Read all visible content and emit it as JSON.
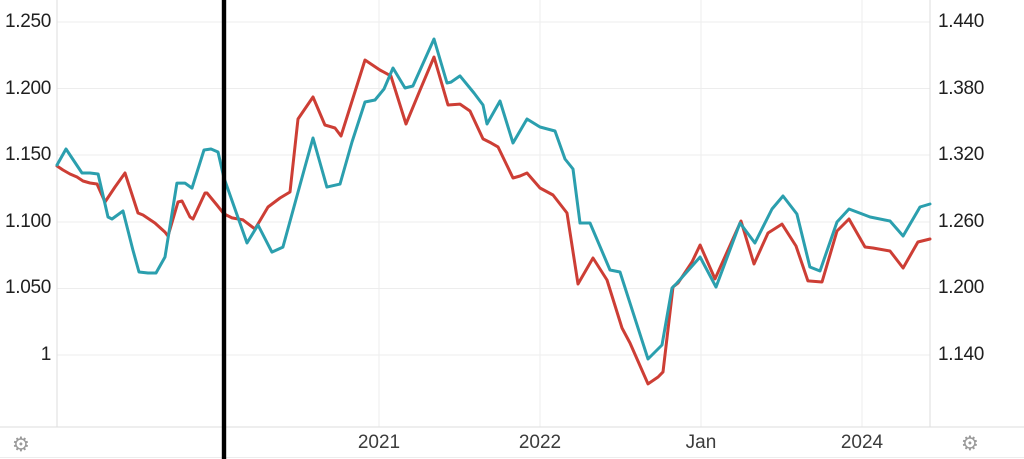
{
  "chart_data": {
    "type": "line",
    "title": "",
    "grid": true,
    "plot": {
      "months_span": 65.07
    },
    "left_axis": {
      "tick_labels": [
        "1.250",
        "1.200",
        "1.150",
        "1.100",
        "1.050",
        "1"
      ],
      "tick_values": [
        1.25,
        1.2,
        1.15,
        1.1,
        1.05,
        1.0
      ]
    },
    "right_axis": {
      "tick_labels": [
        "1.440",
        "1.380",
        "1.320",
        "1.260",
        "1.200",
        "1.140"
      ],
      "tick_values": [
        1.44,
        1.38,
        1.32,
        1.26,
        1.2,
        1.14
      ]
    },
    "x_axis": {
      "labels": [
        {
          "label": "2021",
          "month": 24
        },
        {
          "label": "2022",
          "month": 36
        },
        {
          "label": "Jan",
          "month": 48
        },
        {
          "label": "2024",
          "month": 60
        }
      ]
    },
    "event_line": {
      "month": 12.45,
      "color": "#000000"
    },
    "series": [
      {
        "name": "red-line",
        "axis": "left",
        "color": "#cd3e35",
        "points": [
          [
            0,
            1.1419
          ],
          [
            0.45,
            1.1389
          ],
          [
            0.97,
            1.1359
          ],
          [
            1.49,
            1.1336
          ],
          [
            1.94,
            1.1306
          ],
          [
            2.46,
            1.1291
          ],
          [
            2.98,
            1.1284
          ],
          [
            3.58,
            1.1149
          ],
          [
            4.32,
            1.1261
          ],
          [
            5.07,
            1.1366
          ],
          [
            6.04,
            1.1066
          ],
          [
            6.41,
            1.1051
          ],
          [
            7.3,
            1.0991
          ],
          [
            8.05,
            1.0923
          ],
          [
            8.27,
            1.0893
          ],
          [
            9.02,
            1.1149
          ],
          [
            9.32,
            1.1156
          ],
          [
            9.91,
            1.1036
          ],
          [
            10.14,
            1.1021
          ],
          [
            11.03,
            1.1216
          ],
          [
            11.18,
            1.1216
          ],
          [
            11.92,
            1.1126
          ],
          [
            12.45,
            1.1059
          ],
          [
            13.04,
            1.1029
          ],
          [
            13.86,
            1.1014
          ],
          [
            14.76,
            1.0946
          ],
          [
            15.73,
            1.1111
          ],
          [
            16.62,
            1.1179
          ],
          [
            17.37,
            1.1224
          ],
          [
            17.96,
            1.1772
          ],
          [
            19.08,
            1.1937
          ],
          [
            19.97,
            1.1727
          ],
          [
            20.72,
            1.1704
          ],
          [
            21.17,
            1.1644
          ],
          [
            22.96,
            1.2215
          ],
          [
            24.07,
            1.214
          ],
          [
            24.89,
            1.2095
          ],
          [
            26.01,
            1.1734
          ],
          [
            27.06,
            1.199
          ],
          [
            28.1,
            1.2237
          ],
          [
            29.14,
            1.1877
          ],
          [
            30.04,
            1.1884
          ],
          [
            30.78,
            1.1832
          ],
          [
            31.75,
            1.1622
          ],
          [
            32.35,
            1.1592
          ],
          [
            32.87,
            1.1562
          ],
          [
            33.99,
            1.1329
          ],
          [
            34.51,
            1.1344
          ],
          [
            35.03,
            1.1366
          ],
          [
            36,
            1.1254
          ],
          [
            36.97,
            1.1201
          ],
          [
            38.01,
            1.1066
          ],
          [
            38.83,
            1.0533
          ],
          [
            39.95,
            1.0728
          ],
          [
            40.99,
            1.0563
          ],
          [
            42.11,
            1.0203
          ],
          [
            42.71,
            1.009
          ],
          [
            44.05,
            0.9783
          ],
          [
            44.8,
            0.9835
          ],
          [
            45.17,
            0.9873
          ],
          [
            45.91,
            1.0511
          ],
          [
            46.29,
            1.0541
          ],
          [
            47.33,
            1.0698
          ],
          [
            47.93,
            1.0826
          ],
          [
            49.04,
            1.0571
          ],
          [
            50.98,
            1.1006
          ],
          [
            51.95,
            1.0683
          ],
          [
            52.99,
            1.0916
          ],
          [
            54.04,
            1.0983
          ],
          [
            55.08,
            1.0818
          ],
          [
            55.97,
            1.0556
          ],
          [
            57.02,
            1.0548
          ],
          [
            58.14,
            1.0931
          ],
          [
            59.03,
            1.1021
          ],
          [
            60.22,
            1.0811
          ],
          [
            60.82,
            1.0803
          ],
          [
            62.09,
            1.0781
          ],
          [
            63.06,
            1.0653
          ],
          [
            64.17,
            1.0848
          ],
          [
            65.07,
            1.0871
          ]
        ]
      },
      {
        "name": "teal-line",
        "axis": "right",
        "color": "#2b9fae",
        "points": [
          [
            0,
            1.3112
          ],
          [
            0.67,
            1.3256
          ],
          [
            1.86,
            1.304
          ],
          [
            2.46,
            1.304
          ],
          [
            3.06,
            1.3031
          ],
          [
            3.8,
            1.2643
          ],
          [
            4.1,
            1.2625
          ],
          [
            4.92,
            1.2697
          ],
          [
            5.66,
            1.2346
          ],
          [
            6.11,
            1.2148
          ],
          [
            6.78,
            1.2139
          ],
          [
            7.38,
            1.2139
          ],
          [
            8.05,
            1.2283
          ],
          [
            8.94,
            1.2949
          ],
          [
            9.54,
            1.2949
          ],
          [
            10.06,
            1.2904
          ],
          [
            10.96,
            1.3247
          ],
          [
            11.48,
            1.3256
          ],
          [
            12,
            1.3229
          ],
          [
            12.45,
            1.2995
          ],
          [
            14.16,
            1.2409
          ],
          [
            14.98,
            1.2571
          ],
          [
            16.02,
            1.2327
          ],
          [
            16.84,
            1.2372
          ],
          [
            18.48,
            1.3093
          ],
          [
            19.08,
            1.3355
          ],
          [
            20.12,
            1.2913
          ],
          [
            21.09,
            1.294
          ],
          [
            21.99,
            1.3319
          ],
          [
            22.96,
            1.3679
          ],
          [
            23.7,
            1.3697
          ],
          [
            24.37,
            1.3796
          ],
          [
            25.04,
            1.3986
          ],
          [
            25.94,
            1.3805
          ],
          [
            26.53,
            1.3823
          ],
          [
            28.1,
            1.4247
          ],
          [
            29.07,
            1.385
          ],
          [
            29.37,
            1.3859
          ],
          [
            30.04,
            1.3914
          ],
          [
            31.08,
            1.376
          ],
          [
            31.75,
            1.3652
          ],
          [
            32.05,
            1.3481
          ],
          [
            33.02,
            1.3688
          ],
          [
            33.99,
            1.331
          ],
          [
            35.03,
            1.3526
          ],
          [
            36,
            1.3454
          ],
          [
            37.12,
            1.3418
          ],
          [
            37.86,
            1.3166
          ],
          [
            38.46,
            1.3076
          ],
          [
            38.98,
            1.2589
          ],
          [
            39.73,
            1.2589
          ],
          [
            41.22,
            1.2166
          ],
          [
            41.96,
            1.2148
          ],
          [
            44.05,
            1.1364
          ],
          [
            45.09,
            1.149
          ],
          [
            45.84,
            1.2004
          ],
          [
            46.21,
            1.2049
          ],
          [
            47.93,
            1.2283
          ],
          [
            49.12,
            1.2012
          ],
          [
            50.91,
            1.2589
          ],
          [
            52.02,
            1.2409
          ],
          [
            53.29,
            1.2715
          ],
          [
            54.11,
            1.2832
          ],
          [
            55.15,
            1.267
          ],
          [
            56.12,
            1.2193
          ],
          [
            56.87,
            1.2157
          ],
          [
            58.14,
            1.2598
          ],
          [
            59.03,
            1.2715
          ],
          [
            60.6,
            1.2643
          ],
          [
            62.09,
            1.2607
          ],
          [
            63.06,
            1.2472
          ],
          [
            64.32,
            1.2733
          ],
          [
            65.07,
            1.276
          ]
        ]
      }
    ],
    "colors": {
      "red_series": "#cd3e35",
      "teal_series": "#2b9fae",
      "gridline": "#ededed",
      "plot_border": "#dedede",
      "event_line": "#000000",
      "y_label_text": "#1f1f1f",
      "x_label_text": "#3c3c3c",
      "gear_icon": "#9a9a9a"
    }
  },
  "icons": {
    "settings_left": "⚙",
    "settings_right": "⚙"
  }
}
